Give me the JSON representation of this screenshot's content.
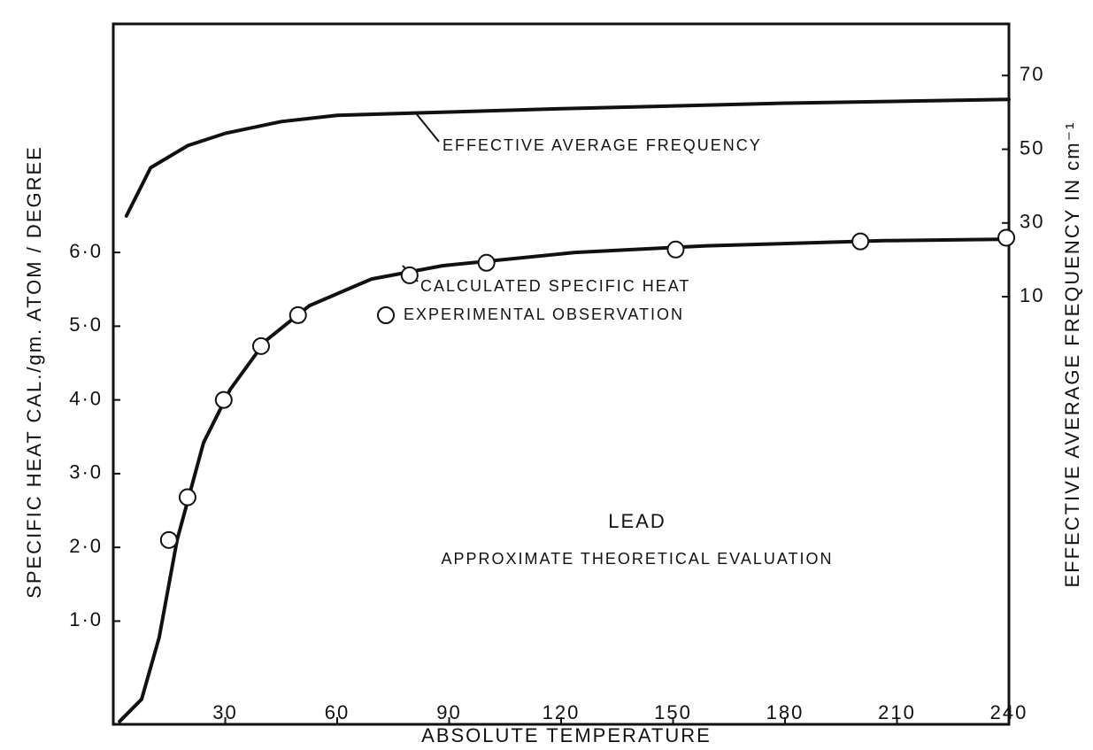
{
  "chart_data": {
    "type": "line",
    "xlabel": "ABSOLUTE TEMPERATURE",
    "ylabel": "SPECIFIC HEAT CAL./gm. ATOM / DEGREE",
    "y2label": "EFFECTIVE AVERAGE FREQUENCY IN cm⁻¹",
    "annotations": [
      "LEAD",
      "APPROXIMATE THEORETICAL EVALUATION"
    ],
    "xlim": [
      0,
      240
    ],
    "xticks": [
      30,
      60,
      90,
      120,
      150,
      180,
      210,
      240
    ],
    "ylim": [
      -0.4,
      9.1
    ],
    "yticks": [
      {
        "value": 1,
        "label": "1·0"
      },
      {
        "value": 2,
        "label": "2·0"
      },
      {
        "value": 3,
        "label": "3·0"
      },
      {
        "value": 4,
        "label": "4·0"
      },
      {
        "value": 5,
        "label": "5·0"
      },
      {
        "value": 6,
        "label": "6·0"
      }
    ],
    "y2lim": [
      -106,
      84
    ],
    "y2ticks": [
      10,
      30,
      50,
      70
    ],
    "grid": false,
    "series": [
      {
        "name": "CALCULATED SPECIFIC HEAT",
        "type": "line",
        "color": "#111111",
        "x": [
          1.7,
          7.6,
          12.3,
          17.1,
          24.2,
          31.3,
          40.8,
          52.6,
          69.2,
          88.2,
          123.7,
          159,
          206.6,
          240
        ],
        "values": [
          -0.36,
          -0.06,
          0.78,
          2.1,
          3.42,
          4.14,
          4.8,
          5.28,
          5.64,
          5.82,
          6.0,
          6.09,
          6.16,
          6.18
        ]
      },
      {
        "name": "EXPERIMENTAL OBSERVATION",
        "type": "scatter",
        "color": "#111111",
        "x": [
          14.9,
          19.9,
          29.6,
          39.6,
          49.5,
          79.4,
          100,
          150.7,
          200.2,
          239.3
        ],
        "values": [
          2.1,
          2.68,
          4.0,
          4.73,
          5.15,
          5.69,
          5.86,
          6.04,
          6.15,
          6.2
        ]
      },
      {
        "name": "EFFECTIVE AVERAGE FREQUENCY",
        "type": "line",
        "axis": "y2",
        "color": "#111111",
        "x": [
          3.5,
          10,
          20,
          30,
          45,
          60,
          90,
          120,
          180,
          240
        ],
        "values": [
          31.9,
          45,
          51,
          54.3,
          57.5,
          59.2,
          60.1,
          61,
          62.5,
          63.5
        ]
      }
    ]
  }
}
